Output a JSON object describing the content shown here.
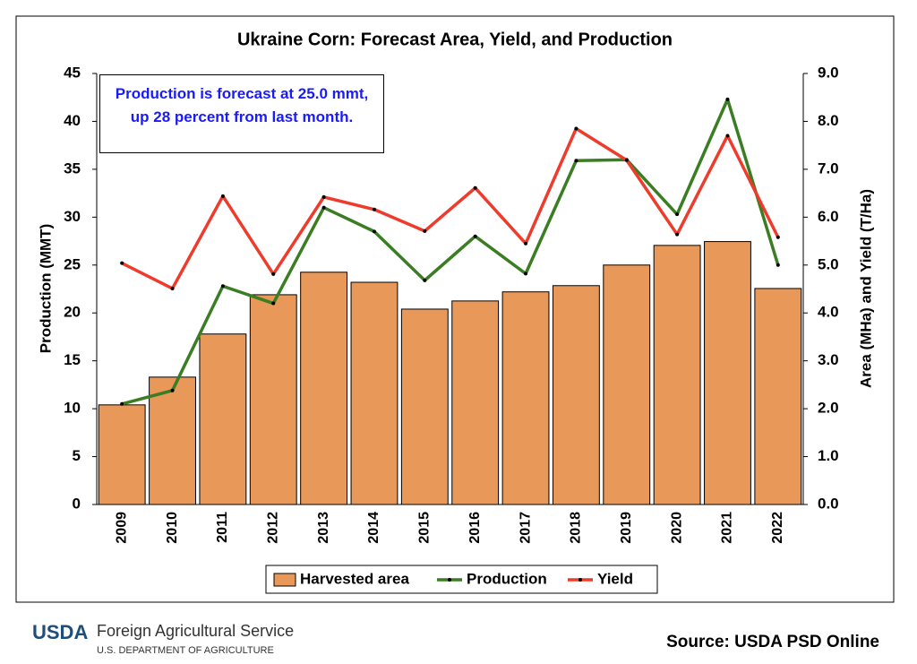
{
  "chart_data": {
    "type": "combo",
    "title": "Ukraine Corn: Forecast Area, Yield, and Production",
    "annotation": "Production is forecast at 25.0 mmt, up 28 percent from last month.",
    "ylabel": "Production (MMT)",
    "y2label": "Area (MHa) and Yield (T/Ha)",
    "categories": [
      "2009",
      "2010",
      "2011",
      "2012",
      "2013",
      "2014",
      "2015",
      "2016",
      "2017",
      "2018",
      "2019",
      "2020",
      "2021",
      "2022"
    ],
    "ylim": [
      0,
      45
    ],
    "yticks": [
      0,
      5,
      10,
      15,
      20,
      25,
      30,
      35,
      40,
      45
    ],
    "y2lim": [
      0,
      9
    ],
    "y2ticks": [
      {
        "value": 0,
        "label": "0.0"
      },
      {
        "value": 1,
        "label": "1.0"
      },
      {
        "value": 2,
        "label": "2.0"
      },
      {
        "value": 3,
        "label": "3.0"
      },
      {
        "value": 4,
        "label": "4.0"
      },
      {
        "value": 5,
        "label": "5.0"
      },
      {
        "value": 6,
        "label": "6.0"
      },
      {
        "value": 7,
        "label": "7.0"
      },
      {
        "value": 8,
        "label": "8.0"
      },
      {
        "value": 9,
        "label": "9.0"
      }
    ],
    "series": [
      {
        "name": "Harvested area",
        "type": "bar",
        "axis": "y2",
        "color": "#E8995A",
        "values": [
          2.08,
          2.66,
          3.56,
          4.38,
          4.85,
          4.64,
          4.08,
          4.25,
          4.44,
          4.57,
          5.0,
          5.41,
          5.49,
          4.51
        ]
      },
      {
        "name": "Production",
        "type": "line",
        "color": "#3A7D22",
        "values": [
          10.5,
          11.9,
          22.8,
          21.0,
          31.0,
          28.5,
          23.4,
          28.0,
          24.1,
          35.9,
          36.0,
          30.3,
          42.3,
          25.0
        ]
      },
      {
        "name": "Yield",
        "type": "line",
        "axis": "y2",
        "color": "#EE3B2B",
        "values": [
          5.04,
          4.51,
          6.44,
          4.81,
          6.42,
          6.16,
          5.71,
          6.61,
          5.45,
          7.85,
          7.19,
          5.64,
          7.7,
          5.58
        ]
      }
    ],
    "logo": "USDA",
    "agency": "Foreign Agricultural Service",
    "department": "U.S. DEPARTMENT OF AGRICULTURE",
    "source": "Source: USDA PSD Online"
  }
}
